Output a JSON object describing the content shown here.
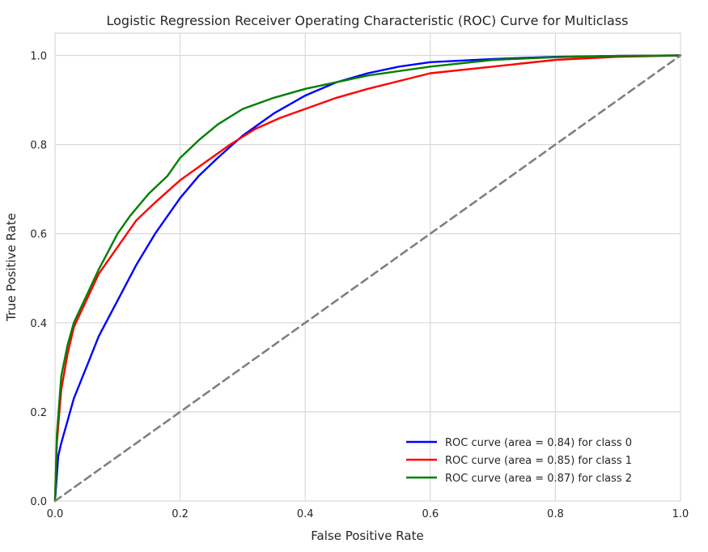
{
  "chart_data": {
    "type": "line",
    "title": "Logistic Regression Receiver Operating Characteristic (ROC) Curve for Multiclass",
    "xlabel": "False Positive Rate",
    "ylabel": "True Positive Rate",
    "xlim": [
      0.0,
      1.0
    ],
    "ylim": [
      0.0,
      1.05
    ],
    "xticks": [
      0.0,
      0.2,
      0.4,
      0.6,
      0.8,
      1.0
    ],
    "yticks": [
      0.0,
      0.2,
      0.4,
      0.6,
      0.8,
      1.0
    ],
    "xtick_labels": [
      "0.0",
      "0.2",
      "0.4",
      "0.6",
      "0.8",
      "1.0"
    ],
    "ytick_labels": [
      "0.0",
      "0.2",
      "0.4",
      "0.6",
      "0.8",
      "1.0"
    ],
    "grid": true,
    "legend_position": "lower-right",
    "series": [
      {
        "name": "ROC curve (area = 0.84) for class 0",
        "color": "#0000ff",
        "x": [
          0,
          0.005,
          0.01,
          0.02,
          0.03,
          0.05,
          0.07,
          0.1,
          0.13,
          0.16,
          0.2,
          0.23,
          0.26,
          0.3,
          0.35,
          0.4,
          0.45,
          0.5,
          0.55,
          0.6,
          0.7,
          0.8,
          0.9,
          1.0
        ],
        "y": [
          0,
          0.1,
          0.13,
          0.18,
          0.23,
          0.3,
          0.37,
          0.45,
          0.53,
          0.6,
          0.68,
          0.73,
          0.77,
          0.82,
          0.87,
          0.91,
          0.94,
          0.96,
          0.975,
          0.985,
          0.992,
          0.997,
          0.999,
          1.0
        ]
      },
      {
        "name": "ROC curve (area = 0.85) for class 1",
        "color": "#ff0000",
        "x": [
          0,
          0.003,
          0.01,
          0.02,
          0.03,
          0.05,
          0.07,
          0.1,
          0.13,
          0.16,
          0.2,
          0.24,
          0.28,
          0.32,
          0.36,
          0.4,
          0.45,
          0.5,
          0.6,
          0.7,
          0.8,
          0.9,
          1.0
        ],
        "y": [
          0,
          0.13,
          0.25,
          0.33,
          0.39,
          0.45,
          0.51,
          0.57,
          0.63,
          0.67,
          0.72,
          0.76,
          0.8,
          0.835,
          0.86,
          0.88,
          0.905,
          0.925,
          0.96,
          0.975,
          0.99,
          0.997,
          1.0
        ]
      },
      {
        "name": "ROC curve (area = 0.87) for class 2",
        "color": "#008000",
        "x": [
          0,
          0.003,
          0.01,
          0.02,
          0.03,
          0.05,
          0.07,
          0.1,
          0.12,
          0.15,
          0.18,
          0.2,
          0.23,
          0.26,
          0.3,
          0.35,
          0.4,
          0.45,
          0.5,
          0.6,
          0.7,
          0.8,
          0.9,
          1.0
        ],
        "y": [
          0,
          0.15,
          0.28,
          0.35,
          0.4,
          0.46,
          0.52,
          0.6,
          0.64,
          0.69,
          0.73,
          0.77,
          0.81,
          0.845,
          0.88,
          0.905,
          0.925,
          0.94,
          0.955,
          0.975,
          0.99,
          0.996,
          0.999,
          1.0
        ]
      },
      {
        "name": "",
        "color": "#808080",
        "dashed": true,
        "x": [
          0.0,
          1.0
        ],
        "y": [
          0.0,
          1.0
        ]
      }
    ]
  }
}
